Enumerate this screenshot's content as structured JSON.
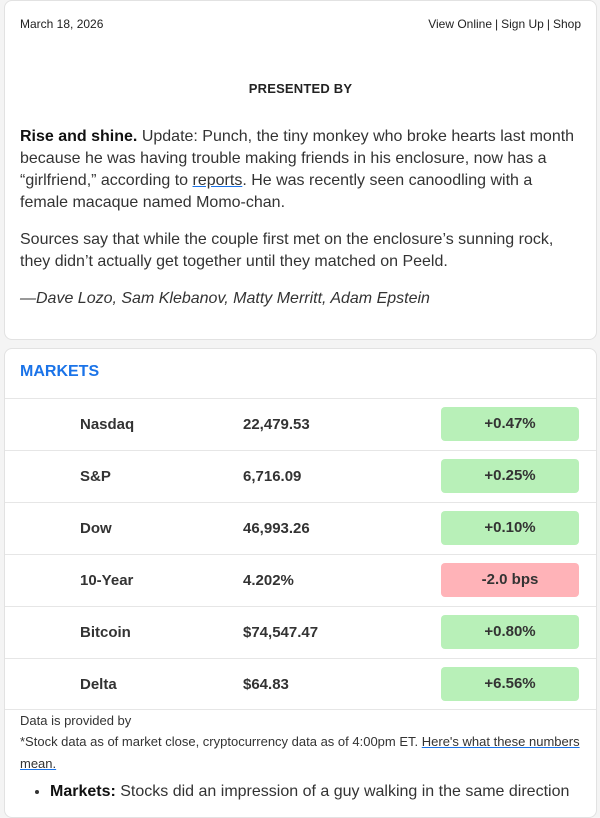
{
  "header": {
    "date": "March 18, 2026",
    "links": [
      "View Online",
      "Sign Up",
      "Shop"
    ],
    "separator": "|"
  },
  "sponsor": {
    "presented_by": "PRESENTED BY"
  },
  "intro": {
    "lead": "Rise and shine.",
    "p1_before_link": " Update: Punch, the tiny monkey who broke hearts last month because he was having trouble making friends in his enclosure, now has a “girlfriend,” according to ",
    "p1_link": "reports",
    "p1_after_link": ". He was recently seen canoodling with a female macaque named Momo-chan.",
    "p2": "Sources say that while the couple first met on the enclosure’s sunning rock, they didn’t actually get together until they matched on Peeld.",
    "signoff": "—Dave Lozo, Sam Klebanov, Matty Merritt, Adam Epstein"
  },
  "markets": {
    "title": "MARKETS",
    "rows": [
      {
        "name": "Nasdaq",
        "value": "22,479.53",
        "change": "+0.47%",
        "direction": "up"
      },
      {
        "name": "S&P",
        "value": "6,716.09",
        "change": "+0.25%",
        "direction": "up"
      },
      {
        "name": "Dow",
        "value": "46,993.26",
        "change": "+0.10%",
        "direction": "up"
      },
      {
        "name": "10-Year",
        "value": "4.202%",
        "change": "-2.0 bps",
        "direction": "down"
      },
      {
        "name": "Bitcoin",
        "value": "$74,547.47",
        "change": "+0.80%",
        "direction": "up"
      },
      {
        "name": "Delta",
        "value": "$64.83",
        "change": "+6.56%",
        "direction": "up"
      }
    ],
    "colors": {
      "up": "#b8f0b8",
      "down": "#ffb3b8",
      "title": "#1a73e8"
    },
    "provided_by": "Data is provided by",
    "footnote_text": "*Stock data as of market close, cryptocurrency data as of 4:00pm ET. ",
    "footnote_link": "Here's what these numbers mean.",
    "bullet_label": "Markets:",
    "bullet_text": " Stocks did an impression of a guy walking in the same direction"
  }
}
